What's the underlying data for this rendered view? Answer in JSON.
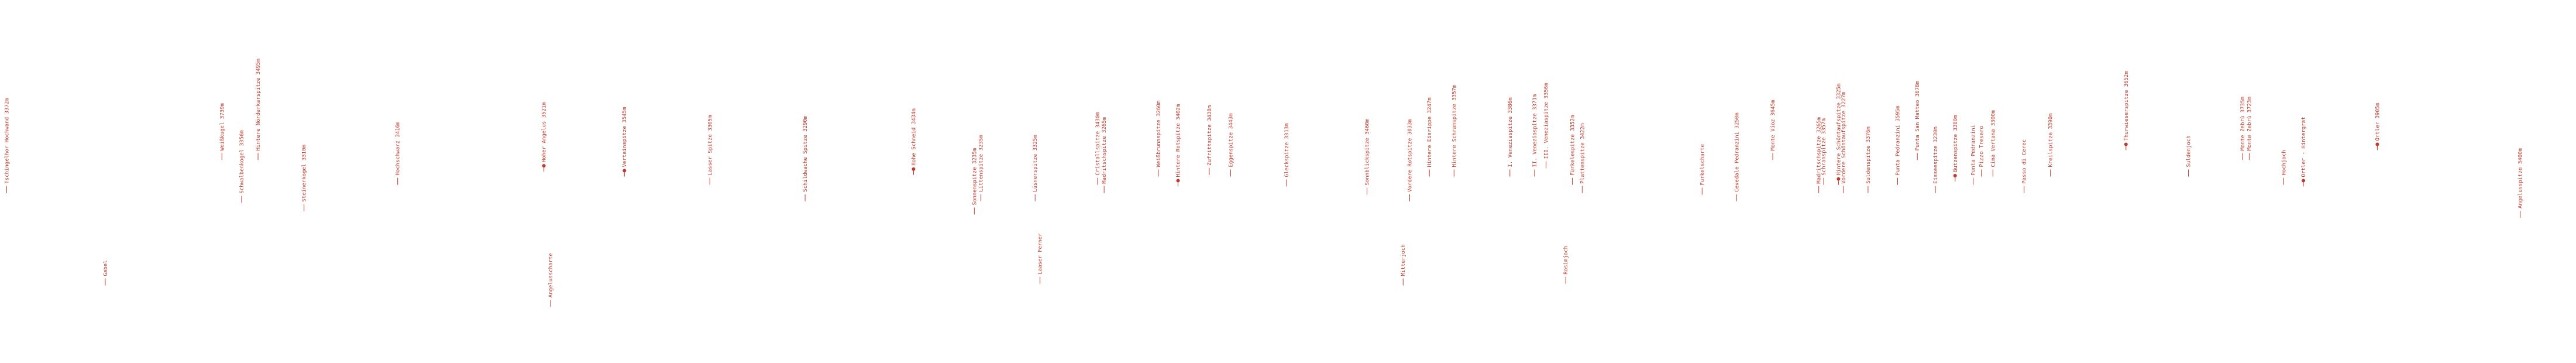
{
  "labels": [
    {
      "text": "Tschingelhor Hochwand 3372m",
      "marked": false
    },
    {
      "text": "Gabel",
      "marked": false
    },
    {
      "text": "Weißkugel 3739m",
      "marked": false
    },
    {
      "text": "Schwalbenkogel 3356m",
      "marked": false
    },
    {
      "text": "Hintere Nörderkarspitze 3495m",
      "marked": false
    },
    {
      "text": "Steinerkogel 3310m",
      "marked": false
    },
    {
      "text": "Hochschwarz 3416m",
      "marked": false
    },
    {
      "text": "Hoher Angelus 3521m",
      "marked": true
    },
    {
      "text": "Angelusscharte",
      "marked": false
    },
    {
      "text": "Vertainspitze 3545m",
      "marked": true
    },
    {
      "text": "Lasser Spitze 3305m",
      "marked": false
    },
    {
      "text": "Schildwache Spitze 3290m",
      "marked": false
    },
    {
      "text": "Hohe Schneid 3434m",
      "marked": true
    },
    {
      "text": "Sonnenspitze 3235m",
      "marked": false
    },
    {
      "text": "Littenspitze 3235m",
      "marked": false
    },
    {
      "text": "Lüsnerspitze 3325m",
      "marked": false
    },
    {
      "text": "Laaser Ferner",
      "marked": false
    },
    {
      "text": "Cristallspitze 3430m",
      "marked": false
    },
    {
      "text": "Madritschspitze 3265m",
      "marked": false
    },
    {
      "text": "Weißbrunnspitze 3260m",
      "marked": false
    },
    {
      "text": "Hintere Rotspitze 3402m",
      "marked": true
    },
    {
      "text": "Zufrittspitze 3438m",
      "marked": false
    },
    {
      "text": "Eggenspitze 3443m",
      "marked": false
    },
    {
      "text": "Gleckspitze 3313m",
      "marked": false
    },
    {
      "text": "Sonnblickspitze 3460m",
      "marked": false
    },
    {
      "text": "Mitterjoch",
      "marked": false
    },
    {
      "text": "Vordere Rotspitze 3033m",
      "marked": false
    },
    {
      "text": "Hintere Eisrippe 3247m",
      "marked": false
    },
    {
      "text": "Hintere Schranspitze 3357m",
      "marked": false
    },
    {
      "text": "I. Veneziaspitze 3386m",
      "marked": false
    },
    {
      "text": "II. Veneziaspitze 3371m",
      "marked": false
    },
    {
      "text": "III. Veneziaspitze 3356m",
      "marked": false
    },
    {
      "text": "Rosimjoch",
      "marked": false
    },
    {
      "text": "Fürkelespitze 3352m",
      "marked": false
    },
    {
      "text": "Plattenspitze 3422m",
      "marked": false
    },
    {
      "text": "Furkelscharte",
      "marked": false
    },
    {
      "text": "Cevedale Pedranzini 3250m",
      "marked": false
    },
    {
      "text": "Monte Vioz 3645m",
      "marked": false
    },
    {
      "text": "Madritschspitze 3265m",
      "marked": false
    },
    {
      "text": "Schranspitze 3357m",
      "marked": false
    },
    {
      "text": "Hintere Schöntaufspitze 3325m",
      "marked": true
    },
    {
      "text": "Vordere Schöntaufspitze 3227m",
      "marked": false
    },
    {
      "text": "Suldenspitze 3376m",
      "marked": false
    },
    {
      "text": "Punta Pedranzini 3595m",
      "marked": false
    },
    {
      "text": "Punta San Matteo 3678m",
      "marked": false
    },
    {
      "text": "Eisseespitze 3230m",
      "marked": false
    },
    {
      "text": "Butzenspitze 3300m",
      "marked": true
    },
    {
      "text": "Punta Pedranzini",
      "marked": false
    },
    {
      "text": "Pizzo Tresero",
      "marked": false
    },
    {
      "text": "Cima Vertana 3300m",
      "marked": false
    },
    {
      "text": "Passo di Cerec",
      "marked": false
    },
    {
      "text": "Kreilspitze 3390m",
      "marked": false
    },
    {
      "text": "Thurwieserspitze 3652m",
      "marked": true
    },
    {
      "text": "Suldenjoch",
      "marked": false
    },
    {
      "text": "Monte Zebrù 3735m",
      "marked": false
    },
    {
      "text": "Monte Zebrù 3723m",
      "marked": false
    },
    {
      "text": "Hochjoch",
      "marked": false
    },
    {
      "text": "Ortler - Hintergrat",
      "marked": true
    },
    {
      "text": "Ortler 3905m",
      "marked": true
    },
    {
      "text": "Angelusspitze 3400m",
      "marked": false
    }
  ]
}
